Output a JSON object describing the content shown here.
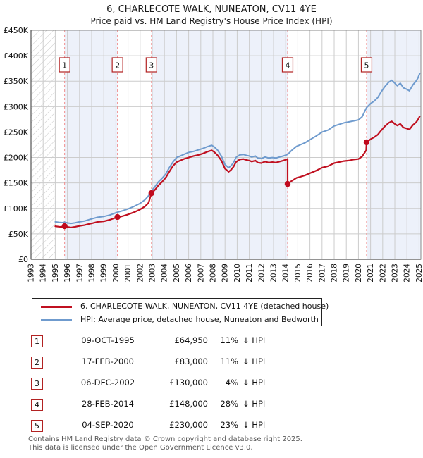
{
  "header": {
    "title": "6, CHARLECOTE WALK, NUNEATON, CV11 4YE",
    "subtitle": "Price paid vs. HM Land Registry's House Price Index (HPI)"
  },
  "colors": {
    "property_line": "#c01020",
    "hpi_line": "#6f9bce",
    "sale_marker": "#c00a1e",
    "sale_dashed_line": "#f08c8c",
    "ownership_band": "#edf1fa",
    "grid": "#cccccc",
    "plot_border": "#888888",
    "badge_border": "#b22222",
    "hatch": "#c8c8c8"
  },
  "chart_data": {
    "type": "line",
    "title": "6, CHARLECOTE WALK, NUNEATON, CV11 4YE",
    "subtitle": "Price paid vs. HM Land Registry's House Price Index (HPI)",
    "units": "GBP thousands",
    "x_axis": {
      "min": 1993,
      "max": 2025.15,
      "tick_years": [
        1993,
        1994,
        1995,
        1996,
        1997,
        1998,
        1999,
        2000,
        2001,
        2002,
        2003,
        2004,
        2005,
        2006,
        2007,
        2008,
        2009,
        2010,
        2011,
        2012,
        2013,
        2014,
        2015,
        2016,
        2017,
        2018,
        2019,
        2020,
        2021,
        2022,
        2023,
        2024,
        2025
      ]
    },
    "y_axis": {
      "min": 0,
      "max": 450,
      "tick_step": 50,
      "tick_labels": [
        "£0",
        "£50K",
        "£100K",
        "£150K",
        "£200K",
        "£250K",
        "£300K",
        "£350K",
        "£400K",
        "£450K"
      ]
    },
    "no_data_region": {
      "from": 1993,
      "to": 1995.0
    },
    "ownership_bands": [
      [
        1995.77,
        2000.13
      ],
      [
        2002.93,
        2014.16
      ],
      [
        2020.67,
        2025.15
      ]
    ],
    "grid": true,
    "legend_position": "below",
    "sales": [
      {
        "n": 1,
        "date": "09-OCT-1995",
        "t": 1995.77,
        "price_k": 64.95,
        "price": "£64,950",
        "pct": "11%",
        "dir": "↓",
        "ref": "HPI"
      },
      {
        "n": 2,
        "date": "17-FEB-2000",
        "t": 2000.13,
        "price_k": 83,
        "price": "£83,000",
        "pct": "11%",
        "dir": "↓",
        "ref": "HPI"
      },
      {
        "n": 3,
        "date": "06-DEC-2002",
        "t": 2002.93,
        "price_k": 130,
        "price": "£130,000",
        "pct": "4%",
        "dir": "↓",
        "ref": "HPI"
      },
      {
        "n": 4,
        "date": "28-FEB-2014",
        "t": 2014.16,
        "price_k": 148,
        "price": "£148,000",
        "pct": "28%",
        "dir": "↓",
        "ref": "HPI"
      },
      {
        "n": 5,
        "date": "04-SEP-2020",
        "t": 2020.67,
        "price_k": 230,
        "price": "£230,000",
        "pct": "23%",
        "dir": "↓",
        "ref": "HPI"
      }
    ],
    "series": [
      {
        "name": "6, CHARLECOTE WALK, NUNEATON, CV11 4YE (detached house)",
        "color": "#c01020",
        "width": 2.2,
        "points": [
          [
            1995.0,
            65
          ],
          [
            1995.3,
            64
          ],
          [
            1995.6,
            63.5
          ],
          [
            1995.77,
            64.95
          ],
          [
            1996.0,
            63.5
          ],
          [
            1996.3,
            62.5
          ],
          [
            1996.6,
            63.5
          ],
          [
            1997.0,
            65.5
          ],
          [
            1997.4,
            67
          ],
          [
            1997.8,
            69.5
          ],
          [
            1998.1,
            71
          ],
          [
            1998.5,
            73.5
          ],
          [
            1999.0,
            74.5
          ],
          [
            1999.5,
            77.5
          ],
          [
            2000.13,
            83
          ],
          [
            2000.5,
            84.5
          ],
          [
            2001.0,
            88
          ],
          [
            2001.5,
            92.5
          ],
          [
            2002.0,
            98
          ],
          [
            2002.4,
            104
          ],
          [
            2002.7,
            111
          ],
          [
            2002.93,
            130
          ],
          [
            2003.2,
            136
          ],
          [
            2003.5,
            145
          ],
          [
            2003.8,
            152
          ],
          [
            2004.1,
            160
          ],
          [
            2004.4,
            172
          ],
          [
            2004.7,
            183
          ],
          [
            2005.0,
            191
          ],
          [
            2005.3,
            194
          ],
          [
            2005.6,
            197
          ],
          [
            2006.0,
            200
          ],
          [
            2006.4,
            203
          ],
          [
            2006.8,
            205
          ],
          [
            2007.2,
            208
          ],
          [
            2007.5,
            211
          ],
          [
            2007.9,
            214
          ],
          [
            2008.1,
            211
          ],
          [
            2008.4,
            204
          ],
          [
            2008.7,
            194
          ],
          [
            2009.0,
            178
          ],
          [
            2009.3,
            172
          ],
          [
            2009.5,
            176
          ],
          [
            2009.7,
            182
          ],
          [
            2009.9,
            191
          ],
          [
            2010.2,
            196
          ],
          [
            2010.5,
            197
          ],
          [
            2010.8,
            195
          ],
          [
            2011.0,
            194
          ],
          [
            2011.2,
            192
          ],
          [
            2011.5,
            194
          ],
          [
            2011.7,
            190
          ],
          [
            2012.0,
            189
          ],
          [
            2012.3,
            192
          ],
          [
            2012.6,
            190
          ],
          [
            2012.9,
            191
          ],
          [
            2013.2,
            190
          ],
          [
            2013.5,
            192
          ],
          [
            2013.8,
            194
          ],
          [
            2014.05,
            196
          ],
          [
            2014.16,
            197
          ],
          [
            2014.16,
            148
          ],
          [
            2014.5,
            154
          ],
          [
            2014.9,
            160
          ],
          [
            2015.2,
            162
          ],
          [
            2015.6,
            165
          ],
          [
            2016.0,
            169
          ],
          [
            2016.5,
            174
          ],
          [
            2017.0,
            180
          ],
          [
            2017.5,
            183
          ],
          [
            2018.0,
            189
          ],
          [
            2018.4,
            191
          ],
          [
            2018.8,
            193
          ],
          [
            2019.2,
            194
          ],
          [
            2019.6,
            196
          ],
          [
            2020.0,
            197
          ],
          [
            2020.3,
            202
          ],
          [
            2020.64,
            214
          ],
          [
            2020.67,
            230
          ],
          [
            2021.0,
            236
          ],
          [
            2021.3,
            240
          ],
          [
            2021.6,
            245
          ],
          [
            2021.9,
            254
          ],
          [
            2022.2,
            262
          ],
          [
            2022.5,
            268
          ],
          [
            2022.75,
            271
          ],
          [
            2023.0,
            266
          ],
          [
            2023.2,
            263
          ],
          [
            2023.45,
            266
          ],
          [
            2023.7,
            259
          ],
          [
            2024.0,
            257
          ],
          [
            2024.2,
            255
          ],
          [
            2024.5,
            264
          ],
          [
            2024.75,
            269
          ],
          [
            2024.9,
            274
          ],
          [
            2025.05,
            281
          ]
        ]
      },
      {
        "name": "HPI: Average price, detached house, Nuneaton and Bedworth",
        "color": "#6f9bce",
        "width": 2,
        "points": [
          [
            1995.0,
            73.5
          ],
          [
            1995.3,
            72.5
          ],
          [
            1995.6,
            72
          ],
          [
            1995.77,
            73
          ],
          [
            1996.0,
            71.5
          ],
          [
            1996.3,
            70.5
          ],
          [
            1996.6,
            71.5
          ],
          [
            1997.0,
            73.5
          ],
          [
            1997.4,
            75
          ],
          [
            1997.8,
            78
          ],
          [
            1998.1,
            80
          ],
          [
            1998.5,
            82.5
          ],
          [
            1999.0,
            84
          ],
          [
            1999.5,
            87
          ],
          [
            2000.13,
            92.5
          ],
          [
            2000.5,
            95
          ],
          [
            2001.0,
            99
          ],
          [
            2001.5,
            104
          ],
          [
            2002.0,
            110
          ],
          [
            2002.4,
            117
          ],
          [
            2002.7,
            125
          ],
          [
            2002.93,
            134
          ],
          [
            2003.2,
            142
          ],
          [
            2003.5,
            152
          ],
          [
            2003.8,
            159
          ],
          [
            2004.1,
            167
          ],
          [
            2004.4,
            180
          ],
          [
            2004.7,
            191
          ],
          [
            2005.0,
            200
          ],
          [
            2005.3,
            203
          ],
          [
            2005.6,
            206
          ],
          [
            2006.0,
            210
          ],
          [
            2006.4,
            212
          ],
          [
            2006.8,
            215
          ],
          [
            2007.2,
            218
          ],
          [
            2007.5,
            221
          ],
          [
            2007.9,
            224
          ],
          [
            2008.1,
            221
          ],
          [
            2008.4,
            214
          ],
          [
            2008.7,
            203
          ],
          [
            2009.0,
            186
          ],
          [
            2009.3,
            180
          ],
          [
            2009.5,
            184
          ],
          [
            2009.7,
            190
          ],
          [
            2009.9,
            200
          ],
          [
            2010.2,
            205
          ],
          [
            2010.5,
            206
          ],
          [
            2010.8,
            204
          ],
          [
            2011.0,
            203
          ],
          [
            2011.2,
            201
          ],
          [
            2011.5,
            203
          ],
          [
            2011.7,
            199
          ],
          [
            2012.0,
            198
          ],
          [
            2012.3,
            201
          ],
          [
            2012.6,
            199
          ],
          [
            2012.9,
            200
          ],
          [
            2013.2,
            199
          ],
          [
            2013.5,
            201
          ],
          [
            2013.8,
            203
          ],
          [
            2014.16,
            206
          ],
          [
            2014.5,
            214
          ],
          [
            2014.9,
            222
          ],
          [
            2015.2,
            225
          ],
          [
            2015.6,
            229
          ],
          [
            2016.0,
            235
          ],
          [
            2016.5,
            242
          ],
          [
            2017.0,
            250
          ],
          [
            2017.5,
            254
          ],
          [
            2018.0,
            262
          ],
          [
            2018.4,
            265
          ],
          [
            2018.8,
            268
          ],
          [
            2019.2,
            270
          ],
          [
            2019.6,
            272
          ],
          [
            2020.0,
            274
          ],
          [
            2020.3,
            280
          ],
          [
            2020.67,
            298
          ],
          [
            2021.0,
            306
          ],
          [
            2021.3,
            311
          ],
          [
            2021.6,
            318
          ],
          [
            2021.9,
            330
          ],
          [
            2022.2,
            340
          ],
          [
            2022.5,
            348
          ],
          [
            2022.75,
            352
          ],
          [
            2023.0,
            346
          ],
          [
            2023.2,
            341
          ],
          [
            2023.45,
            346
          ],
          [
            2023.7,
            337
          ],
          [
            2024.0,
            334
          ],
          [
            2024.2,
            331
          ],
          [
            2024.5,
            343
          ],
          [
            2024.75,
            350
          ],
          [
            2024.9,
            356
          ],
          [
            2025.05,
            365
          ]
        ]
      }
    ]
  },
  "legend": {
    "items": [
      {
        "label": "6, CHARLECOTE WALK, NUNEATON, CV11 4YE (detached house)",
        "color": "#c01020"
      },
      {
        "label": "HPI: Average price, detached house, Nuneaton and Bedworth",
        "color": "#6f9bce"
      }
    ]
  },
  "table": {
    "rows": [
      {
        "num": "1",
        "date": "09-OCT-1995",
        "price": "£64,950",
        "pct": "11%",
        "dir": "↓",
        "ref": "HPI"
      },
      {
        "num": "2",
        "date": "17-FEB-2000",
        "price": "£83,000",
        "pct": "11%",
        "dir": "↓",
        "ref": "HPI"
      },
      {
        "num": "3",
        "date": "06-DEC-2002",
        "price": "£130,000",
        "pct": "4%",
        "dir": "↓",
        "ref": "HPI"
      },
      {
        "num": "4",
        "date": "28-FEB-2014",
        "price": "£148,000",
        "pct": "28%",
        "dir": "↓",
        "ref": "HPI"
      },
      {
        "num": "5",
        "date": "04-SEP-2020",
        "price": "£230,000",
        "pct": "23%",
        "dir": "↓",
        "ref": "HPI"
      }
    ]
  },
  "footer": {
    "line1": "Contains HM Land Registry data © Crown copyright and database right 2025.",
    "line2": "This data is licensed under the Open Government Licence v3.0."
  }
}
